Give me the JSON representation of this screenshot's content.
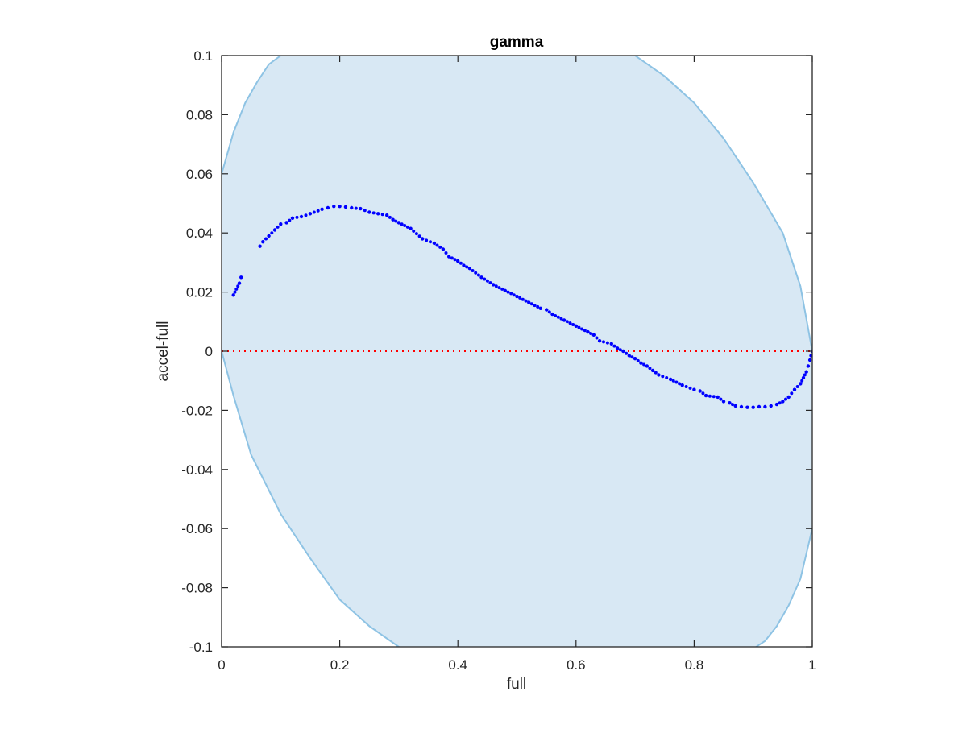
{
  "chart_data": {
    "type": "scatter",
    "title": "gamma",
    "xlabel": "full",
    "ylabel": "accel-full",
    "xlim": [
      0,
      1
    ],
    "ylim": [
      -0.1,
      0.1
    ],
    "x_ticks": [
      0,
      0.2,
      0.4,
      0.6,
      0.8,
      1
    ],
    "x_tick_labels": [
      "0",
      "0.2",
      "0.4",
      "0.6",
      "0.8",
      "1"
    ],
    "y_ticks": [
      -0.1,
      -0.08,
      -0.06,
      -0.04,
      -0.02,
      0,
      0.02,
      0.04,
      0.06,
      0.08,
      0.1
    ],
    "y_tick_labels": [
      "-0.1",
      "-0.08",
      "-0.06",
      "-0.04",
      "-0.02",
      "0",
      "0.02",
      "0.04",
      "0.06",
      "0.08",
      "0.1"
    ],
    "grid": false,
    "colors": {
      "points": "#0000ff",
      "zero_line": "#ff0000",
      "band_fill": "#d8e8f4",
      "band_edge": "#8ec3e4",
      "axes": "#262626"
    },
    "reference_line": {
      "y": 0,
      "style": "dotted"
    },
    "band": {
      "upper": [
        [
          0,
          0.06
        ],
        [
          0.02,
          0.074
        ],
        [
          0.04,
          0.084
        ],
        [
          0.06,
          0.091
        ],
        [
          0.08,
          0.097
        ],
        [
          0.1,
          0.1
        ],
        [
          0.2,
          0.122
        ],
        [
          0.4,
          0.14
        ],
        [
          0.6,
          0.125
        ],
        [
          0.7,
          0.1
        ],
        [
          0.75,
          0.093
        ],
        [
          0.8,
          0.084
        ],
        [
          0.85,
          0.072
        ],
        [
          0.9,
          0.057
        ],
        [
          0.95,
          0.04
        ],
        [
          0.98,
          0.022
        ],
        [
          1.0,
          0.0
        ]
      ],
      "lower": [
        [
          1.0,
          -0.06
        ],
        [
          0.98,
          -0.077
        ],
        [
          0.96,
          -0.086
        ],
        [
          0.94,
          -0.093
        ],
        [
          0.92,
          -0.098
        ],
        [
          0.905,
          -0.1
        ],
        [
          0.8,
          -0.12
        ],
        [
          0.6,
          -0.14
        ],
        [
          0.4,
          -0.13
        ],
        [
          0.3,
          -0.1
        ],
        [
          0.25,
          -0.093
        ],
        [
          0.2,
          -0.084
        ],
        [
          0.15,
          -0.07
        ],
        [
          0.1,
          -0.055
        ],
        [
          0.05,
          -0.035
        ],
        [
          0.02,
          -0.015
        ],
        [
          0.0,
          0.0
        ]
      ]
    },
    "series": [
      {
        "points": [
          [
            0.02,
            0.019
          ],
          [
            0.03,
            0.023
          ],
          [
            0.033,
            0.025
          ],
          [
            0.065,
            0.0355
          ],
          [
            0.07,
            0.037
          ],
          [
            0.08,
            0.039
          ],
          [
            0.09,
            0.041
          ],
          [
            0.1,
            0.043
          ],
          [
            0.11,
            0.0435
          ],
          [
            0.12,
            0.045
          ],
          [
            0.135,
            0.0455
          ],
          [
            0.15,
            0.0465
          ],
          [
            0.17,
            0.048
          ],
          [
            0.18,
            0.0485
          ],
          [
            0.19,
            0.049
          ],
          [
            0.2,
            0.049
          ],
          [
            0.21,
            0.0488
          ],
          [
            0.22,
            0.0485
          ],
          [
            0.235,
            0.0482
          ],
          [
            0.25,
            0.047
          ],
          [
            0.265,
            0.0465
          ],
          [
            0.28,
            0.046
          ],
          [
            0.29,
            0.0445
          ],
          [
            0.3,
            0.0435
          ],
          [
            0.32,
            0.0415
          ],
          [
            0.34,
            0.038
          ],
          [
            0.36,
            0.0365
          ],
          [
            0.375,
            0.0345
          ],
          [
            0.385,
            0.032
          ],
          [
            0.4,
            0.0305
          ],
          [
            0.41,
            0.029
          ],
          [
            0.42,
            0.028
          ],
          [
            0.44,
            0.025
          ],
          [
            0.46,
            0.0225
          ],
          [
            0.48,
            0.0205
          ],
          [
            0.5,
            0.0185
          ],
          [
            0.52,
            0.0165
          ],
          [
            0.54,
            0.0145
          ],
          [
            0.55,
            0.014
          ],
          [
            0.56,
            0.0125
          ],
          [
            0.58,
            0.0105
          ],
          [
            0.6,
            0.0085
          ],
          [
            0.62,
            0.0065
          ],
          [
            0.63,
            0.0055
          ],
          [
            0.64,
            0.0035
          ],
          [
            0.66,
            0.0025
          ],
          [
            0.67,
            0.001
          ],
          [
            0.68,
            0.0
          ],
          [
            0.69,
            -0.0015
          ],
          [
            0.7,
            -0.0025
          ],
          [
            0.71,
            -0.004
          ],
          [
            0.72,
            -0.005
          ],
          [
            0.73,
            -0.0065
          ],
          [
            0.74,
            -0.008
          ],
          [
            0.76,
            -0.0095
          ],
          [
            0.78,
            -0.0115
          ],
          [
            0.8,
            -0.013
          ],
          [
            0.81,
            -0.0135
          ],
          [
            0.82,
            -0.015
          ],
          [
            0.84,
            -0.0155
          ],
          [
            0.85,
            -0.017
          ],
          [
            0.86,
            -0.0175
          ],
          [
            0.87,
            -0.0185
          ],
          [
            0.88,
            -0.0188
          ],
          [
            0.89,
            -0.019
          ],
          [
            0.9,
            -0.019
          ],
          [
            0.91,
            -0.0188
          ],
          [
            0.92,
            -0.0188
          ],
          [
            0.93,
            -0.0185
          ],
          [
            0.94,
            -0.018
          ],
          [
            0.95,
            -0.017
          ],
          [
            0.96,
            -0.0155
          ],
          [
            0.97,
            -0.013
          ],
          [
            0.98,
            -0.011
          ],
          [
            0.985,
            -0.009
          ],
          [
            0.99,
            -0.007
          ],
          [
            0.993,
            -0.005
          ],
          [
            0.996,
            -0.003
          ],
          [
            0.998,
            -0.0015
          ],
          [
            1.0,
            0.0
          ]
        ]
      }
    ]
  }
}
